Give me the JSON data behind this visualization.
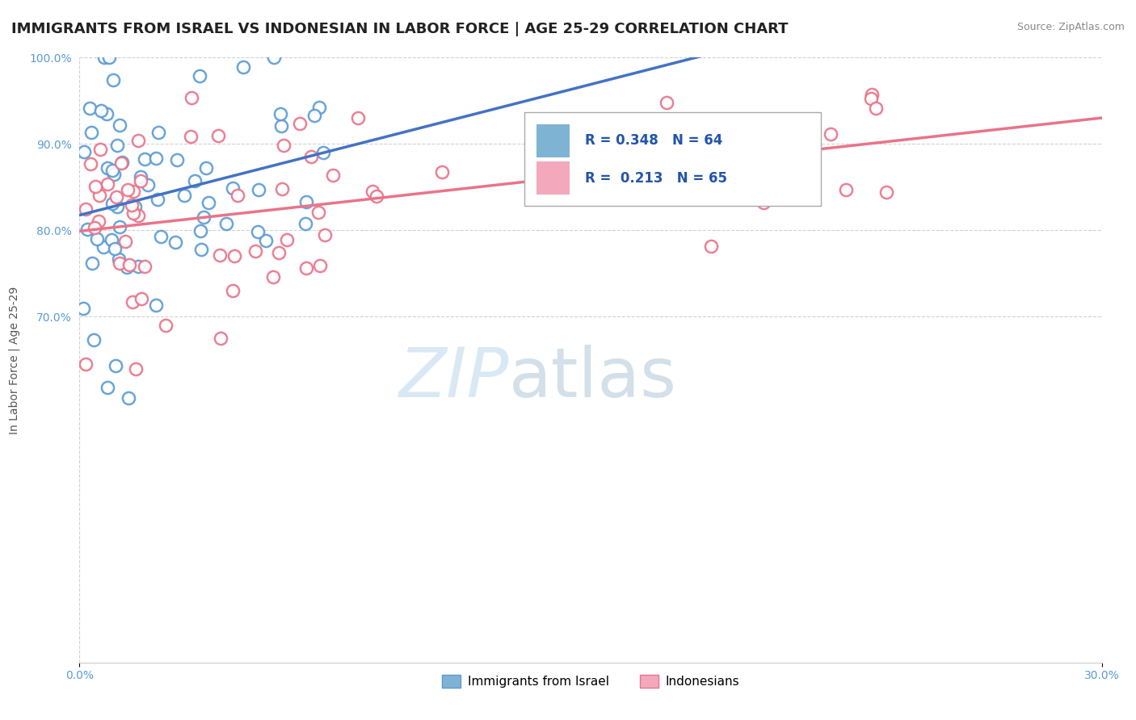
{
  "title": "IMMIGRANTS FROM ISRAEL VS INDONESIAN IN LABOR FORCE | AGE 25-29 CORRELATION CHART",
  "source": "Source: ZipAtlas.com",
  "ylabel": "In Labor Force | Age 25-29",
  "xlim": [
    0.0,
    0.3
  ],
  "ylim": [
    0.3,
    1.0
  ],
  "xtick_vals": [
    0.0,
    0.3
  ],
  "xtick_labels": [
    "0.0%",
    "30.0%"
  ],
  "ytick_vals": [
    0.7,
    0.8,
    0.9,
    1.0
  ],
  "ytick_labels": [
    "70.0%",
    "80.0%",
    "90.0%",
    "100.0%"
  ],
  "israel_color": "#7fb3d3",
  "israeli_edge": "#5b9bd5",
  "indonesian_color": "#f4a8bc",
  "indonesian_edge": "#e8748a",
  "israel_trend_color": "#4472c4",
  "indonesian_trend_color": "#e8748a",
  "israel_R": 0.348,
  "israel_N": 64,
  "indonesian_R": 0.213,
  "indonesian_N": 65,
  "background_color": "#ffffff",
  "grid_color": "#cccccc",
  "watermark_zip": "ZIP",
  "watermark_atlas": "atlas",
  "title_fontsize": 13,
  "axis_label_fontsize": 10,
  "tick_fontsize": 10,
  "tick_color": "#5b9bd5",
  "legend_fontsize": 12
}
